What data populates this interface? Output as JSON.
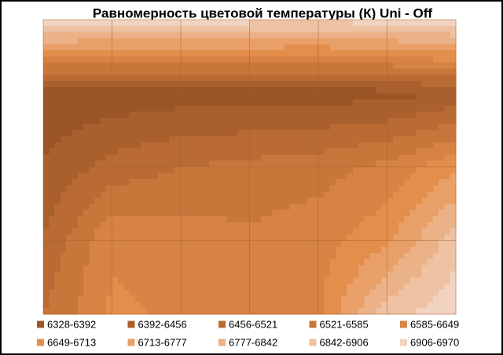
{
  "chart_data": {
    "type": "contour",
    "title": "Равномерность  цветовой температуры (К) Uni - Off",
    "levels": [
      6328,
      6392,
      6456,
      6521,
      6585,
      6649,
      6713,
      6777,
      6842,
      6906,
      6970
    ],
    "z": [
      [
        6960,
        6950,
        6940,
        6930,
        6920,
        6940,
        6960
      ],
      [
        6340,
        6350,
        6360,
        6360,
        6360,
        6370,
        6400
      ],
      [
        6400,
        6480,
        6520,
        6540,
        6560,
        6600,
        6700
      ],
      [
        6460,
        6640,
        6620,
        6600,
        6620,
        6700,
        6880
      ],
      [
        6520,
        6660,
        6640,
        6620,
        6640,
        6880,
        6950
      ]
    ],
    "series": [
      {
        "name": "6328-6392",
        "color": "#9a5526"
      },
      {
        "name": "6392-6456",
        "color": "#a9602c"
      },
      {
        "name": "6456-6521",
        "color": "#b96b33"
      },
      {
        "name": "6521-6585",
        "color": "#c8773b"
      },
      {
        "name": "6585-6649",
        "color": "#d68344"
      },
      {
        "name": "6649-6713",
        "color": "#e48e4c"
      },
      {
        "name": "6713-6777",
        "color": "#e9a068"
      },
      {
        "name": "6777-6842",
        "color": "#ebb287"
      },
      {
        "name": "6842-6906",
        "color": "#eec2a3"
      },
      {
        "name": "6906-6970",
        "color": "#f1d3c2"
      }
    ]
  }
}
